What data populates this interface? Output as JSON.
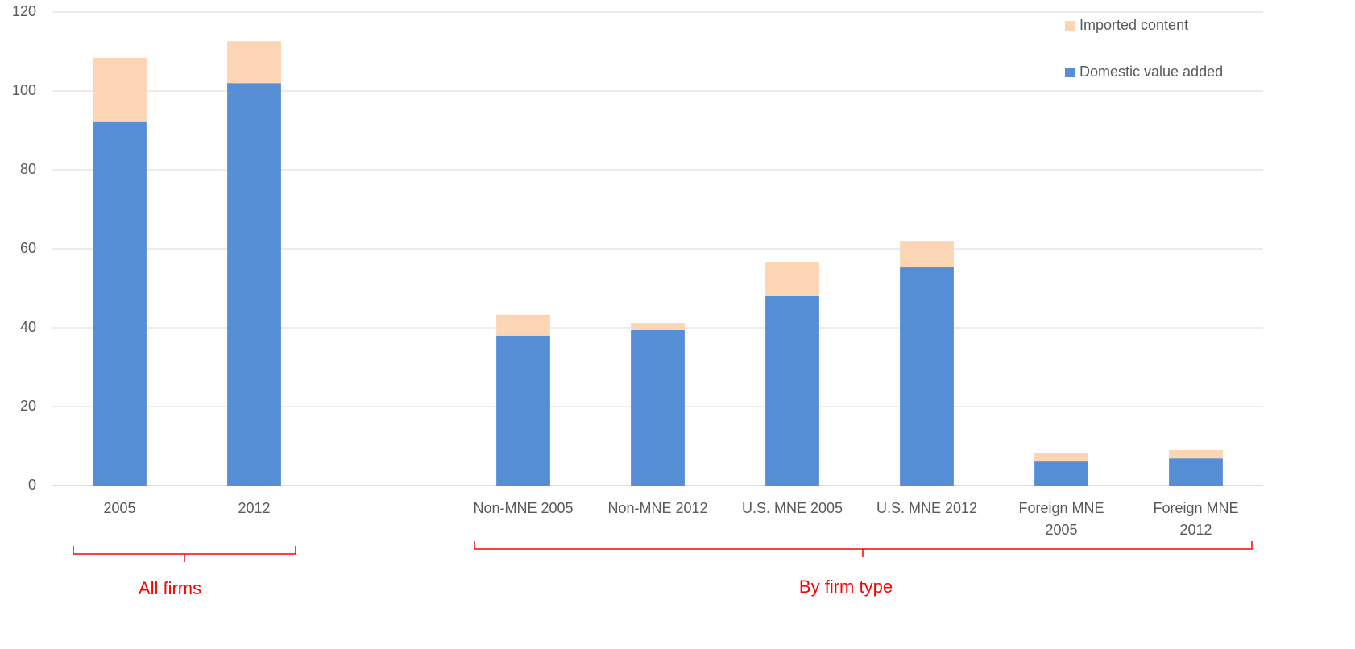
{
  "chart_data": {
    "type": "stacked_bar",
    "categories": [
      "2005",
      "2012",
      null,
      "Non-MNE 2005",
      "Non-MNE 2012",
      "U.S. MNE 2005",
      "U.S. MNE 2012",
      "Foreign MNE 2005",
      "Foreign MNE 2012"
    ],
    "series": [
      {
        "name": "Domestic value added",
        "color": "#558ed5",
        "values": [
          92.3,
          102,
          null,
          38,
          39.4,
          48,
          55.3,
          6.1,
          6.9
        ]
      },
      {
        "name": "Imported content",
        "color": "#fcd5b5",
        "values": [
          16.1,
          10.6,
          null,
          5.3,
          1.8,
          8.7,
          6.7,
          2.1,
          2.1
        ]
      }
    ],
    "ylim": [
      0,
      120
    ],
    "yticks": [
      0,
      20,
      40,
      60,
      80,
      100,
      120
    ],
    "grid": true,
    "legend": "top-right",
    "annotations": [
      "All firms",
      "By firm type"
    ]
  }
}
